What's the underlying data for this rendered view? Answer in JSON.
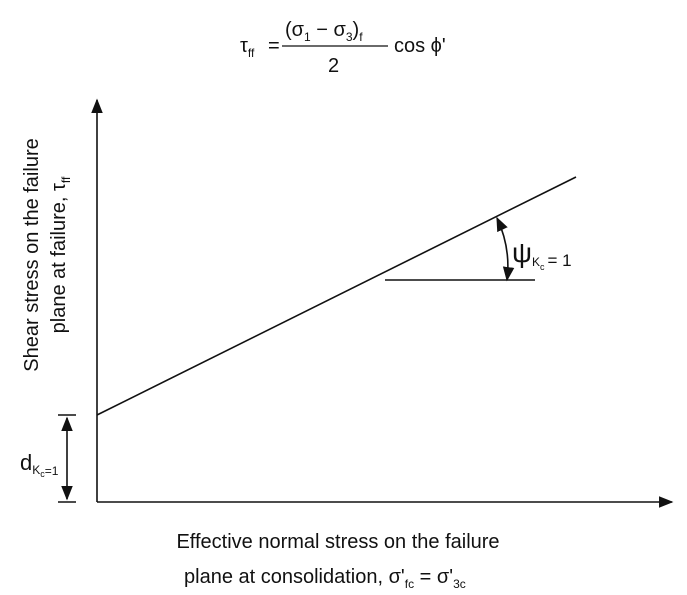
{
  "formula": {
    "lhs": "τ",
    "lhs_sub": "ff",
    "equals": "=",
    "numerator": "(σ",
    "sub1": "1",
    "minus": " − σ",
    "sub3": "3",
    "close": ")",
    "sub_f": "f",
    "denominator": "2",
    "tail": "cos ϕ'"
  },
  "y_axis": {
    "line1": "Shear stress on the failure",
    "line2": "plane at failure, τ",
    "line2_sub": "ff"
  },
  "x_axis": {
    "line1": "Effective normal stress on the failure",
    "line2": "plane at consolidation, σ'",
    "line2_sub1": "fc",
    "line2_mid": " = σ'",
    "line2_sub2": "3c"
  },
  "angle_label": {
    "symbol": "ψ",
    "sub": "K",
    "subsub": "c",
    "tail": "= 1"
  },
  "intercept_label": {
    "symbol": "d",
    "sub": "K",
    "subsub": "c",
    "tail": "=1"
  }
}
